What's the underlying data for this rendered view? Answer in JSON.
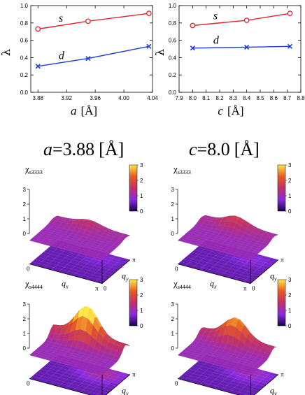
{
  "chart_data": [
    {
      "type": "line",
      "xlabel_symbol": "a",
      "xlabel_unit": "[Å]",
      "ylabel": "λ",
      "xlim": [
        3.87,
        4.04
      ],
      "ylim": [
        0.0,
        1.0
      ],
      "xticks": [
        3.88,
        3.92,
        3.96,
        4.0,
        4.04
      ],
      "xtick_labels": [
        "3.88",
        "3.92",
        "3.96",
        "4.00",
        "4.04"
      ],
      "yticks": [
        0.0,
        0.2,
        0.4,
        0.6,
        0.8,
        1.0
      ],
      "ytick_labels": [
        "0.0",
        "0.2",
        "0.4",
        "0.6",
        "0.8",
        "1.0"
      ],
      "series": [
        {
          "name": "s",
          "color": "#e8202a",
          "marker": "circle",
          "x": [
            3.88,
            3.95,
            4.035
          ],
          "values": [
            0.73,
            0.82,
            0.91
          ]
        },
        {
          "name": "d",
          "color": "#1c3fd8",
          "marker": "x",
          "x": [
            3.88,
            3.95,
            4.035
          ],
          "values": [
            0.3,
            0.39,
            0.53
          ]
        }
      ]
    },
    {
      "type": "line",
      "xlabel_symbol": "c",
      "xlabel_unit": "[Å]",
      "ylabel": "λ",
      "xlim": [
        7.9,
        8.8
      ],
      "ylim": [
        0.0,
        1.0
      ],
      "xticks": [
        7.9,
        8.0,
        8.1,
        8.2,
        8.3,
        8.4,
        8.5,
        8.6,
        8.7,
        8.8
      ],
      "xtick_labels": [
        "7.9",
        "8.0",
        "8.1",
        "8.2",
        "8.3",
        "8.4",
        "8.5",
        "8.6",
        "8.7",
        "8.8"
      ],
      "yticks": [
        0.0,
        0.2,
        0.4,
        0.6,
        0.8,
        1.0
      ],
      "ytick_labels": [
        "0.0",
        "0.2",
        "0.4",
        "0.6",
        "0.8",
        "1.0"
      ],
      "series": [
        {
          "name": "s",
          "color": "#e8202a",
          "marker": "circle",
          "x": [
            8.0,
            8.4,
            8.72
          ],
          "values": [
            0.77,
            0.83,
            0.91
          ]
        },
        {
          "name": "d",
          "color": "#1c3fd8",
          "marker": "x",
          "x": [
            8.0,
            8.4,
            8.72
          ],
          "values": [
            0.51,
            0.52,
            0.53
          ]
        }
      ]
    }
  ],
  "headings": [
    {
      "symbol": "a",
      "value": "=3.88",
      "unit": "[Å]"
    },
    {
      "symbol": "c",
      "value": "=8.0",
      "unit": "[Å]"
    }
  ],
  "surface_panels": [
    {
      "chi": "χ",
      "sub": "s3333",
      "peak": 1.4
    },
    {
      "chi": "χ",
      "sub": "s3333",
      "peak": 1.6
    },
    {
      "chi": "χ",
      "sub": "s4444",
      "peak": 2.9
    },
    {
      "chi": "χ",
      "sub": "s4444",
      "peak": 2.3
    }
  ],
  "surface_axes": {
    "z_ticks": [
      "3",
      "2",
      "1",
      "0"
    ],
    "colorbar_ticks": [
      "3",
      "2",
      "1",
      "0"
    ],
    "colorbar_range": [
      0,
      3
    ],
    "qx_label": "q",
    "qx_sub": "x",
    "qy_label": "q",
    "qy_sub": "y",
    "tick_zero": "0",
    "tick_pi": "π"
  }
}
